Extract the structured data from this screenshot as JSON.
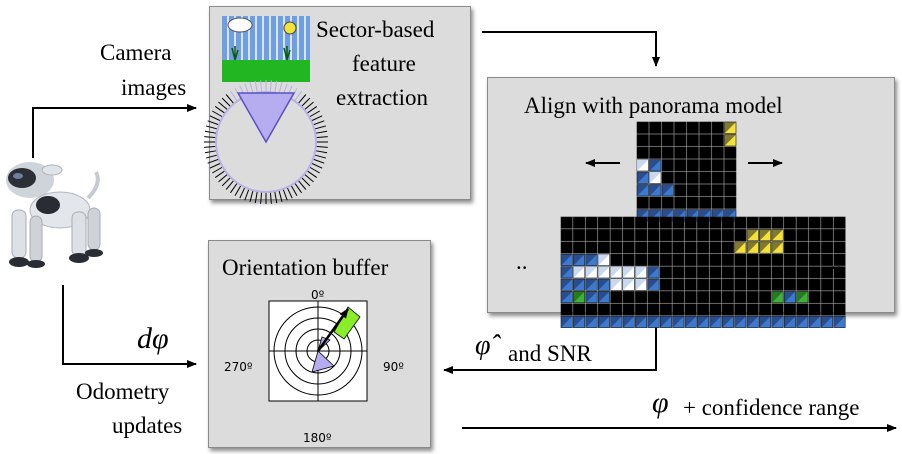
{
  "labels": {
    "camera_line1": "Camera",
    "camera_line2": "images",
    "sector_line1": "Sector-based",
    "sector_line2": "feature",
    "sector_line3": "extraction",
    "align_title": "Align with panorama model",
    "orient_title": "Orientation buffer",
    "deg_0": "0º",
    "deg_90": "90º",
    "deg_180": "180º",
    "deg_270": "270º",
    "dphi": "dφ",
    "odometry_line1": "Odometry",
    "odometry_line2": "updates",
    "phihat": "φ̂",
    "snr_text": "and SNR",
    "phi": "φ",
    "confidence_text": "+ confidence range",
    "dots_left": "..",
    "dots_right": ".."
  },
  "colors": {
    "box_fill": "#dcdcdc",
    "cell_black": "#000000",
    "cell_yellow": "#f4e23a",
    "cell_blue": "#3c7ad0",
    "cell_light": "#c8d8ef",
    "cell_green": "#3fb13a",
    "sky": "#6f9fe0",
    "grass": "#22b622",
    "ring": "#b7b1e6",
    "wedge": "#b6acf0",
    "pointer_green": "#88ee2a"
  },
  "grids": {
    "small": [
      "KKKKKKKY",
      "KKKKKKKY",
      "KKKKKKKK",
      "LBKKKKKK",
      "BLKKKKKK",
      "BBBKKKKK",
      "KKKKKKKK",
      "BBBBBBBB"
    ],
    "large": [
      "KKKKKKKKKKKKKKKKKKKKKKK",
      "KKKKKKKKKKKKKKKYYYKKKKK",
      "KKKKKKKKKKKKKKYYYYKKKKK",
      "BBBLKKKKKKKKKKKKKKKKKKK",
      "BLLLLLLBKKKKKKKKKKKKKKK",
      "BBBBLLLBKKKKKKKKKKKKKKK",
      "BGBBKKKKKKKKKKKKKGBGKKK",
      "KKKKKKKKKKKKKKKKKKKKKKK",
      "BBBBBBBBBBBBBBBBBBBBBBB"
    ]
  }
}
